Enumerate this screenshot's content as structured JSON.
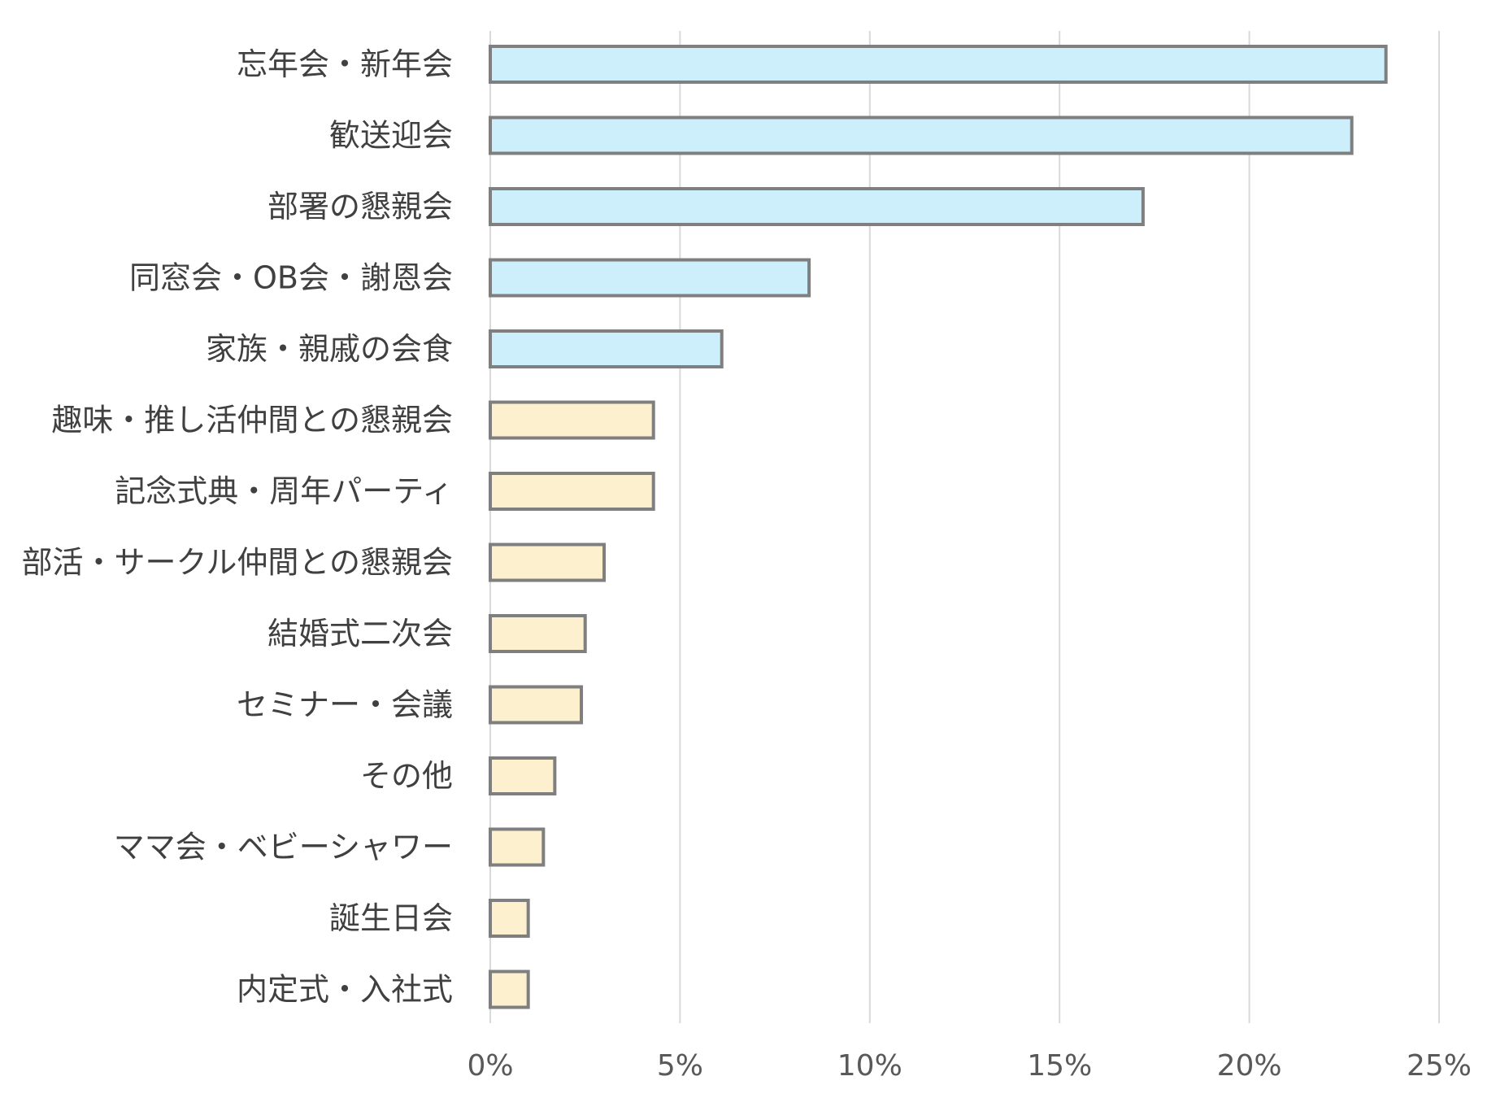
{
  "chart_data": {
    "type": "bar",
    "orientation": "horizontal",
    "categories": [
      "忘年会・新年会",
      "歓送迎会",
      "部署の懇親会",
      "同窓会・OB会・謝恩会",
      "家族・親戚の会食",
      "趣味・推し活仲間との懇親会",
      "記念式典・周年パーティ",
      "部活・サークル仲間との懇親会",
      "結婚式二次会",
      "セミナー・会議",
      "その他",
      "ママ会・ベビーシャワー",
      "誕生日会",
      "内定式・入社式"
    ],
    "values": [
      23.6,
      22.7,
      17.2,
      8.4,
      6.1,
      4.3,
      4.3,
      3.0,
      2.5,
      2.4,
      1.7,
      1.4,
      1.0,
      1.0
    ],
    "unit": "%",
    "xlim": [
      0,
      25
    ],
    "xticks": [
      "0%",
      "5%",
      "10%",
      "15%",
      "20%",
      "25%"
    ],
    "xtick_values": [
      0,
      5,
      10,
      15,
      20,
      25
    ],
    "grid": true,
    "highlight_count": 5,
    "colors": {
      "highlight_fill": "#cdeefb",
      "other_fill": "#fdf0cf",
      "bar_stroke": "#7f7f7f",
      "grid": "#d9d9d9",
      "label": "#404040",
      "tick": "#595959"
    },
    "title": "",
    "xlabel": "",
    "ylabel": ""
  }
}
